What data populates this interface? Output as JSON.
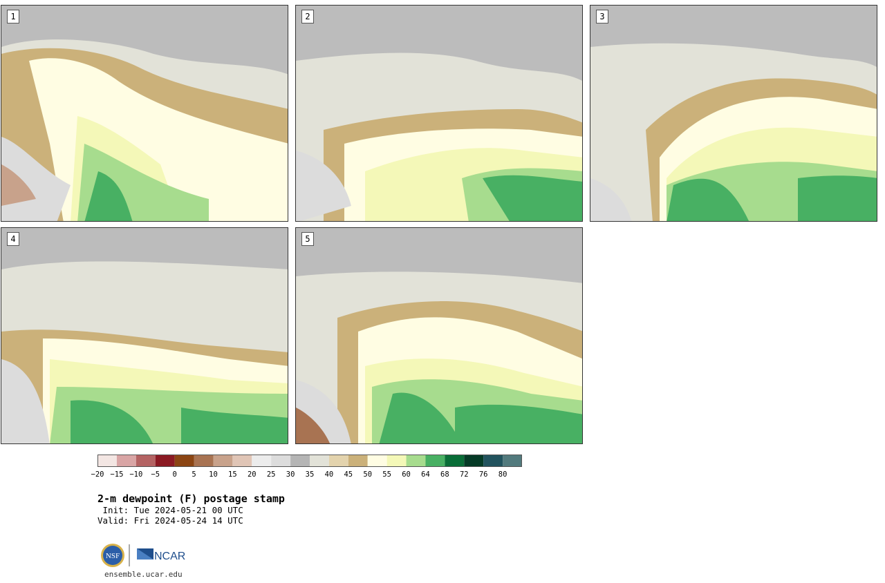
{
  "panels": [
    {
      "label": "1"
    },
    {
      "label": "2"
    },
    {
      "label": "3"
    },
    {
      "label": "4"
    },
    {
      "label": "5"
    }
  ],
  "colorbar": {
    "ticks": [
      "−20",
      "−15",
      "−10",
      "−5",
      "0",
      "5",
      "10",
      "15",
      "20",
      "25",
      "30",
      "35",
      "40",
      "45",
      "50",
      "55",
      "60",
      "64",
      "68",
      "72",
      "76",
      "80"
    ],
    "colors": [
      "#f3e6e3",
      "#d9a5a5",
      "#b46363",
      "#8b1a23",
      "#8b4513",
      "#a87352",
      "#c8a28b",
      "#e0c5b6",
      "#ececec",
      "#dcdcdc",
      "#b5b5b5",
      "#e2e2d8",
      "#e3d3ad",
      "#cbb17a",
      "#fffde3",
      "#f4f8b8",
      "#a7dc8e",
      "#48b063",
      "#096d37",
      "#053a26",
      "#22535e",
      "#527a7d"
    ]
  },
  "title": {
    "main": "2-m dewpoint (F) postage stamp",
    "init": " Init: Tue 2024-05-21 00 UTC",
    "valid": "Valid: Fri 2024-05-24 14 UTC"
  },
  "logos": {
    "nsf": "NSF",
    "ncar": "NCAR",
    "url": "ensemble.ucar.edu"
  }
}
